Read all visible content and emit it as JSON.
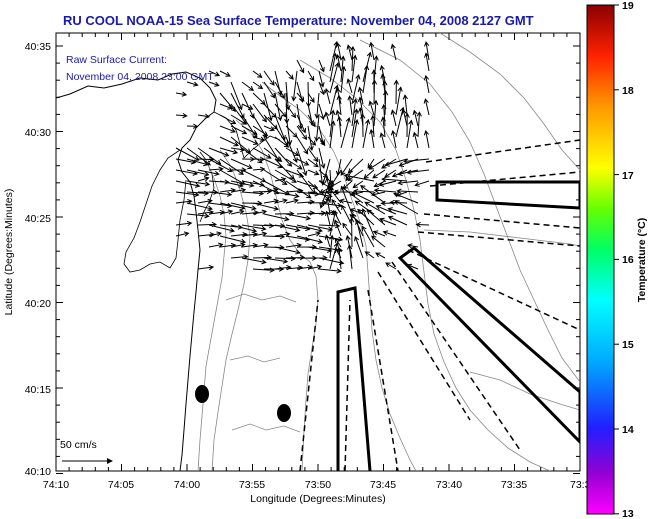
{
  "title": "RU COOL  NOAA-15  Sea Surface Temperature:  November 04, 2008 2127 GMT",
  "inset": {
    "line1": "Raw Surface Current:",
    "line2": "November 04, 2008 23:00 GMT"
  },
  "scale": {
    "label": "50 cm/s"
  },
  "axes": {
    "xlabel": "Longitude (Degrees:Minutes)",
    "ylabel": "Latitude (Degrees:Minutes)",
    "xticks": [
      "74:10",
      "74:05",
      "74:00",
      "73:55",
      "73:50",
      "73:45",
      "73:40",
      "73:35",
      "73:3"
    ],
    "yticks": [
      "40:35",
      "40:30",
      "40:25",
      "40:20",
      "40:15",
      "40:10"
    ]
  },
  "colorbar": {
    "label": "Temperature (°C)",
    "ticks": [
      "19",
      "18",
      "17",
      "16",
      "15",
      "14",
      "13"
    ],
    "colors": [
      "#ff00ff",
      "#8a2be2",
      "#0000ff",
      "#00bfff",
      "#00ffff",
      "#00ff7f",
      "#7fff00",
      "#ffff00",
      "#ffa500",
      "#ff4500",
      "#ff0000",
      "#8b0000"
    ]
  }
}
